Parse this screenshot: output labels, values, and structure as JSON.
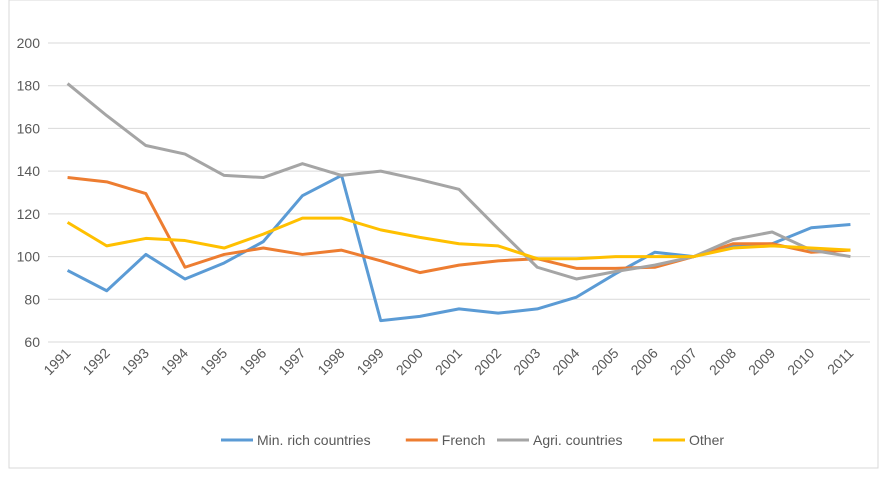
{
  "chart_data": {
    "type": "line",
    "categories": [
      "1991",
      "1992",
      "1993",
      "1994",
      "1995",
      "1996",
      "1997",
      "1998",
      "1999",
      "2000",
      "2001",
      "2002",
      "2003",
      "2004",
      "2005",
      "2006",
      "2007",
      "2008",
      "2009",
      "2010",
      "2011"
    ],
    "series": [
      {
        "name": "Min. rich countries",
        "color": "#5b9bd5",
        "values": [
          93.5,
          84,
          101,
          89.5,
          97,
          107,
          128.5,
          138,
          70,
          72,
          75.5,
          73.5,
          75.5,
          81,
          92,
          102,
          100,
          105,
          106,
          113.5,
          115
        ]
      },
      {
        "name": "French",
        "color": "#ed7d31",
        "values": [
          137,
          135,
          129.5,
          95,
          101,
          104,
          101,
          103,
          98,
          92.5,
          96,
          98,
          99,
          94.5,
          94.5,
          95,
          100,
          106,
          106,
          102,
          103
        ]
      },
      {
        "name": "Agri. countries",
        "color": "#a5a5a5",
        "values": [
          181,
          166,
          152,
          148,
          138,
          137,
          143.5,
          138,
          140,
          136,
          131.5,
          113,
          95,
          89.5,
          93,
          96,
          100,
          108,
          111.5,
          103,
          100
        ]
      },
      {
        "name": "Other",
        "color": "#ffc000",
        "values": [
          116,
          105,
          108.5,
          107.5,
          104,
          110.5,
          118,
          118,
          112.5,
          109,
          106,
          105,
          99,
          99,
          100,
          100,
          100,
          104,
          105,
          104,
          103
        ]
      }
    ],
    "ylim": [
      60,
      200
    ],
    "yticks": [
      60,
      80,
      100,
      120,
      140,
      160,
      180,
      200
    ],
    "grid": true,
    "legend": "bottom"
  }
}
